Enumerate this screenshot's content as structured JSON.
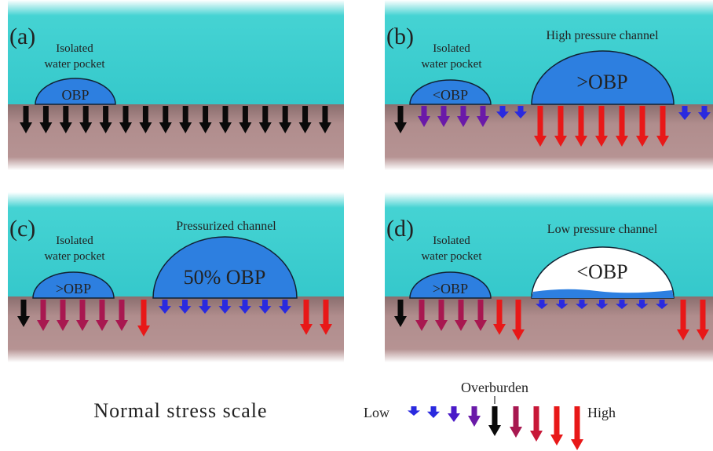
{
  "panels": [
    {
      "label": "(a)",
      "pocket_label": [
        "Isolated",
        "water pocket"
      ],
      "pocket": "OBP"
    },
    {
      "label": "(b)",
      "pocket_label": [
        "Isolated",
        "water pocket"
      ],
      "pocket": "<OBP",
      "channel_label": "High pressure channel",
      "channel": ">OBP"
    },
    {
      "label": "(c)",
      "pocket_label": [
        "Isolated",
        "water pocket"
      ],
      "pocket": ">OBP",
      "channel_label": "Pressurized channel",
      "channel": "50% OBP"
    },
    {
      "label": "(d)",
      "pocket_label": [
        "Isolated",
        "water pocket"
      ],
      "pocket": ">OBP",
      "channel_label": "Low pressure channel",
      "channel": "<OBP"
    }
  ],
  "legend": {
    "title": "Normal stress scale",
    "low": "Low",
    "overburden": "Overburden",
    "high": "High"
  }
}
